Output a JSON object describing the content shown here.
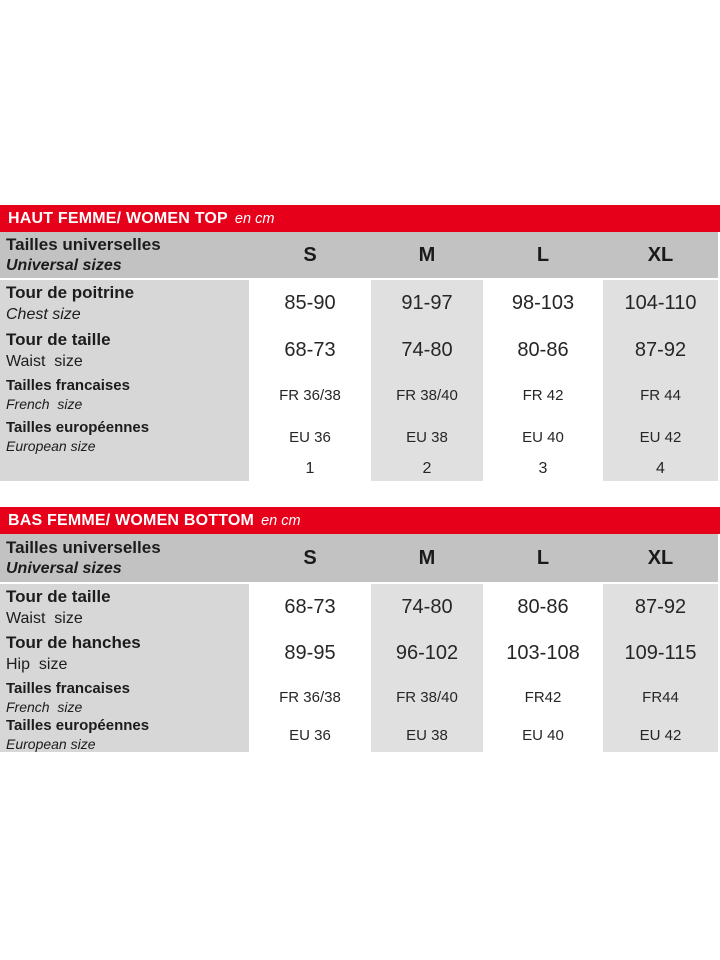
{
  "colors": {
    "accent_red": "#e70019",
    "header_row_gray": "#c2c2c2",
    "label_column_gray": "#d7d7d7",
    "alt_column_gray": "#e0e0e0",
    "text_dark": "#1c1c1c"
  },
  "tables": [
    {
      "title": "HAUT FEMME/ WOMEN TOP",
      "unit": "en cm",
      "header": {
        "label_fr": "Tailles universelles",
        "label_en": "Universal sizes",
        "sizes": [
          "S",
          "M",
          "L",
          "XL"
        ]
      },
      "rows": [
        {
          "label_fr": "Tour de poitrine",
          "label_en": "Chest size",
          "values": [
            "85-90",
            "91-97",
            "98-103",
            "104-110"
          ]
        },
        {
          "label_fr": "Tour de taille",
          "label_en": "Waist  size",
          "values": [
            "68-73",
            "74-80",
            "80-86",
            "87-92"
          ]
        },
        {
          "label_fr": "Tailles francaises",
          "label_en": "French  size",
          "values": [
            "FR 36/38",
            "FR 38/40",
            "FR 42",
            "FR 44"
          ]
        },
        {
          "label_fr": "Tailles européennes",
          "label_en": "European size",
          "values": [
            "EU 36",
            "EU 38",
            "EU 40",
            "EU 42"
          ]
        },
        {
          "label_fr": "",
          "label_en": "",
          "values": [
            "1",
            "2",
            "3",
            "4"
          ]
        }
      ]
    },
    {
      "title": "BAS FEMME/ WOMEN BOTTOM",
      "unit": "en cm",
      "header": {
        "label_fr": "Tailles universelles",
        "label_en": "Universal sizes",
        "sizes": [
          "S",
          "M",
          "L",
          "XL"
        ]
      },
      "rows": [
        {
          "label_fr": "Tour de taille",
          "label_en": "Waist  size",
          "values": [
            "68-73",
            "74-80",
            "80-86",
            "87-92"
          ]
        },
        {
          "label_fr": "Tour de hanches",
          "label_en": "Hip  size",
          "values": [
            "89-95",
            "96-102",
            "103-108",
            "109-115"
          ]
        },
        {
          "label_fr": "Tailles francaises",
          "label_en": "French  size",
          "values": [
            "FR 36/38",
            "FR 38/40",
            "FR42",
            "FR44"
          ]
        },
        {
          "label_fr": "Tailles européennes",
          "label_en": "European size",
          "values": [
            "EU 36",
            "EU 38",
            "EU 40",
            "EU 42"
          ]
        }
      ]
    }
  ]
}
